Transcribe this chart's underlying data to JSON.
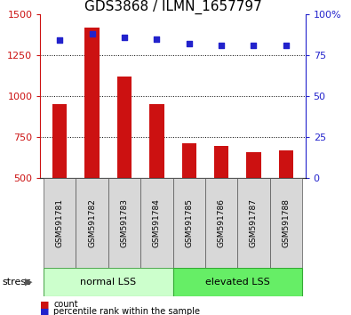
{
  "title": "GDS3868 / ILMN_1657797",
  "samples": [
    "GSM591781",
    "GSM591782",
    "GSM591783",
    "GSM591784",
    "GSM591785",
    "GSM591786",
    "GSM591787",
    "GSM591788"
  ],
  "counts": [
    950,
    1420,
    1120,
    950,
    710,
    695,
    660,
    670
  ],
  "percentile_ranks": [
    84,
    88,
    86,
    85,
    82,
    81,
    81,
    81
  ],
  "bar_color": "#cc1111",
  "dot_color": "#2222cc",
  "ylim_left": [
    500,
    1500
  ],
  "ylim_right": [
    0,
    100
  ],
  "yticks_left": [
    500,
    750,
    1000,
    1250,
    1500
  ],
  "yticks_right": [
    0,
    25,
    50,
    75,
    100
  ],
  "ytick_right_labels": [
    "0",
    "25",
    "50",
    "75",
    "100%"
  ],
  "group1_label": "normal LSS",
  "group2_label": "elevated LSS",
  "group1_color": "#ccffcc",
  "group2_color": "#66ee66",
  "stress_label": "stress",
  "legend_count_label": "count",
  "legend_pct_label": "percentile rank within the sample",
  "title_fontsize": 11,
  "axis_color_left": "#cc1111",
  "axis_color_right": "#2222cc",
  "sample_bg_color": "#d8d8d8",
  "grid_color": "#000000",
  "bar_width": 0.45
}
